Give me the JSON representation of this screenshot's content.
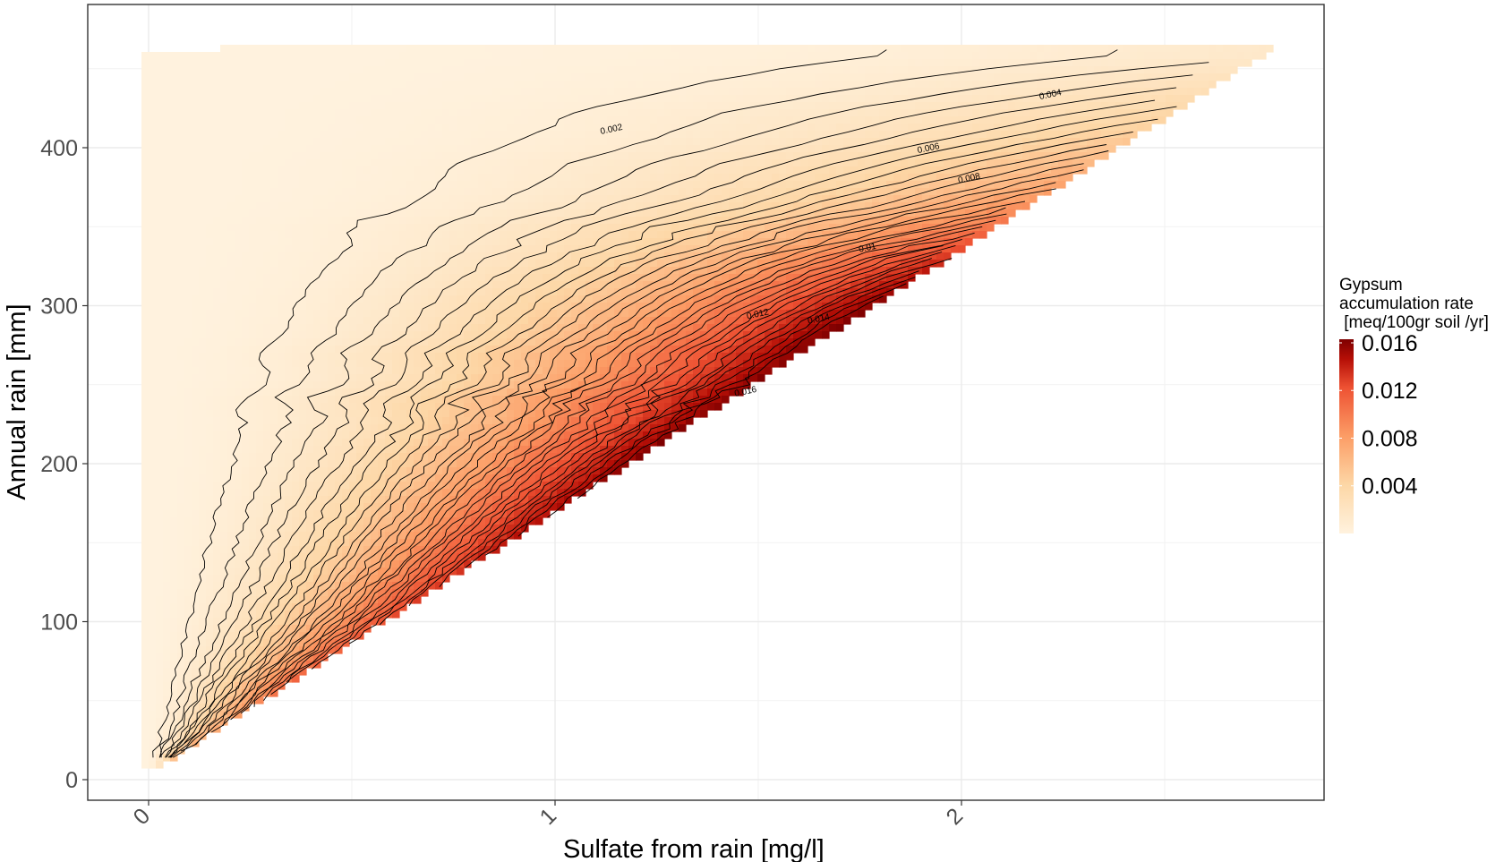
{
  "chart_data": {
    "type": "heatmap",
    "subtype": "filled heatmap with contour lines",
    "title": "",
    "xlabel": "Sulfate from rain [mg/l]",
    "ylabel": "Annual rain [mm]",
    "xlim": [
      -0.15,
      2.9
    ],
    "ylim": [
      -15,
      490
    ],
    "x_ticks": [
      0,
      1,
      2
    ],
    "x_tick_labels": [
      "0",
      "1",
      "2"
    ],
    "x_tick_rotation_deg": -45,
    "y_ticks": [
      0,
      100,
      200,
      300,
      400
    ],
    "y_tick_labels": [
      "0",
      "100",
      "200",
      "300",
      "400"
    ],
    "grid": true,
    "panel_border": true,
    "legend": {
      "position": "right",
      "title_lines": [
        "Gypsum",
        "accumulation rate",
        " [meq/100gr soil /yr]"
      ],
      "breaks": [
        0.004,
        0.008,
        0.012,
        0.016
      ],
      "break_labels": [
        "0.004",
        "0.008",
        "0.012",
        "0.016"
      ],
      "range": [
        0.0,
        0.0163
      ],
      "colors": [
        "#fff2de",
        "#fdd7a6",
        "#fc9d66",
        "#ee5233",
        "#b50e06",
        "#7e0000"
      ]
    },
    "contour_interval": 0.0005,
    "contour_labels": [
      {
        "level": "0.002",
        "x": 1.14,
        "y": 410
      },
      {
        "level": "0.004",
        "x": 2.22,
        "y": 432
      },
      {
        "level": "0.006",
        "x": 1.92,
        "y": 398
      },
      {
        "level": "0.008",
        "x": 2.02,
        "y": 379
      },
      {
        "level": "0.01",
        "x": 1.77,
        "y": 335
      },
      {
        "level": "0.012",
        "x": 1.5,
        "y": 293
      },
      {
        "level": "0.014",
        "x": 1.65,
        "y": 290
      },
      {
        "level": "0.016",
        "x": 1.47,
        "y": 244
      }
    ],
    "data_domain": {
      "description_points": {
        "min_rain_left": 8,
        "max_rain_top": 466,
        "lower_right_edge_start": {
          "x": 0.05,
          "y": 12
        },
        "lower_right_edge_end": {
          "x": 2.75,
          "y": 460
        }
      }
    },
    "surface_samples": [
      {
        "x": 0.1,
        "y": 100,
        "value": 0.001
      },
      {
        "x": 0.3,
        "y": 100,
        "value": 0.003
      },
      {
        "x": 0.5,
        "y": 100,
        "value": 0.0085
      },
      {
        "x": 0.3,
        "y": 200,
        "value": 0.002
      },
      {
        "x": 0.8,
        "y": 200,
        "value": 0.008
      },
      {
        "x": 1.2,
        "y": 200,
        "value": 0.016
      },
      {
        "x": 0.5,
        "y": 300,
        "value": 0.0035
      },
      {
        "x": 1.0,
        "y": 300,
        "value": 0.007
      },
      {
        "x": 1.6,
        "y": 290,
        "value": 0.015
      },
      {
        "x": 1.0,
        "y": 400,
        "value": 0.002
      },
      {
        "x": 2.0,
        "y": 400,
        "value": 0.006
      },
      {
        "x": 2.35,
        "y": 420,
        "value": 0.011
      },
      {
        "x": 2.6,
        "y": 455,
        "value": 0.003
      }
    ]
  }
}
